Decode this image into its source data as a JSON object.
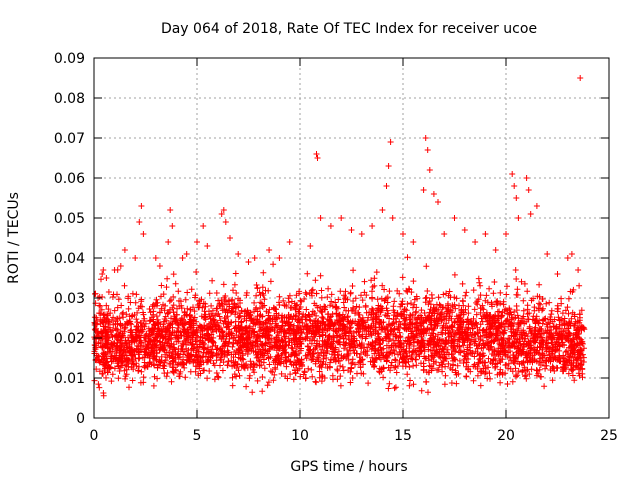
{
  "chart_data": {
    "type": "scatter",
    "title": "Day 064 of 2018, Rate Of TEC Index for receiver ucoe",
    "xlabel": "GPS time / hours",
    "ylabel": "ROTI / TECUs",
    "xlim": [
      0,
      25
    ],
    "ylim": [
      0,
      0.09
    ],
    "xticks": [
      0,
      5,
      10,
      15,
      20,
      25
    ],
    "xtick_labels": [
      "0",
      "5",
      "10",
      "15",
      "20",
      "25"
    ],
    "yticks": [
      0,
      0.01,
      0.02,
      0.03,
      0.04,
      0.05,
      0.06,
      0.07,
      0.08,
      0.09
    ],
    "ytick_labels": [
      "0",
      "0.01",
      "0.02",
      "0.03",
      "0.04",
      "0.05",
      "0.06",
      "0.07",
      "0.08",
      "0.09"
    ],
    "grid": true,
    "marker": "+",
    "series": [
      {
        "name": "ROTI",
        "color": "#ff0000",
        "points": [
          [
            0.05,
            0.031
          ],
          [
            0.2,
            0.03
          ],
          [
            0.3,
            0.028
          ],
          [
            0.4,
            0.036
          ],
          [
            0.45,
            0.037
          ],
          [
            0.6,
            0.035
          ],
          [
            1.0,
            0.037
          ],
          [
            1.3,
            0.038
          ],
          [
            1.5,
            0.042
          ],
          [
            2.0,
            0.04
          ],
          [
            2.2,
            0.049
          ],
          [
            2.3,
            0.053
          ],
          [
            2.4,
            0.046
          ],
          [
            3.0,
            0.04
          ],
          [
            3.2,
            0.038
          ],
          [
            3.6,
            0.044
          ],
          [
            3.7,
            0.052
          ],
          [
            3.8,
            0.048
          ],
          [
            4.3,
            0.04
          ],
          [
            4.5,
            0.041
          ],
          [
            5.0,
            0.044
          ],
          [
            5.3,
            0.048
          ],
          [
            5.5,
            0.043
          ],
          [
            6.2,
            0.051
          ],
          [
            6.3,
            0.052
          ],
          [
            6.4,
            0.049
          ],
          [
            6.6,
            0.045
          ],
          [
            7.0,
            0.041
          ],
          [
            7.5,
            0.039
          ],
          [
            7.8,
            0.04
          ],
          [
            8.5,
            0.042
          ],
          [
            9.0,
            0.04
          ],
          [
            9.5,
            0.044
          ],
          [
            10.5,
            0.043
          ],
          [
            10.8,
            0.066
          ],
          [
            10.85,
            0.065
          ],
          [
            11.0,
            0.05
          ],
          [
            11.5,
            0.048
          ],
          [
            12.0,
            0.05
          ],
          [
            12.5,
            0.047
          ],
          [
            13.0,
            0.046
          ],
          [
            13.5,
            0.048
          ],
          [
            14.0,
            0.052
          ],
          [
            14.2,
            0.058
          ],
          [
            14.3,
            0.063
          ],
          [
            14.4,
            0.069
          ],
          [
            14.5,
            0.05
          ],
          [
            15.0,
            0.046
          ],
          [
            15.5,
            0.044
          ],
          [
            16.0,
            0.057
          ],
          [
            16.1,
            0.07
          ],
          [
            16.2,
            0.067
          ],
          [
            16.3,
            0.062
          ],
          [
            16.5,
            0.056
          ],
          [
            16.7,
            0.054
          ],
          [
            17.0,
            0.046
          ],
          [
            17.5,
            0.05
          ],
          [
            18.0,
            0.047
          ],
          [
            18.5,
            0.044
          ],
          [
            19.0,
            0.046
          ],
          [
            19.5,
            0.042
          ],
          [
            20.0,
            0.046
          ],
          [
            20.3,
            0.061
          ],
          [
            20.4,
            0.058
          ],
          [
            20.5,
            0.055
          ],
          [
            20.6,
            0.05
          ],
          [
            21.0,
            0.06
          ],
          [
            21.1,
            0.057
          ],
          [
            21.2,
            0.051
          ],
          [
            21.5,
            0.053
          ],
          [
            22.0,
            0.041
          ],
          [
            22.5,
            0.036
          ],
          [
            23.0,
            0.04
          ],
          [
            23.2,
            0.041
          ],
          [
            23.5,
            0.037
          ],
          [
            23.6,
            0.085
          ]
        ],
        "bulk_envelope": {
          "x_range": [
            0,
            23.8
          ],
          "lower_ranges": [
            [
              0,
              0.004
            ],
            [
              5,
              0.006
            ],
            [
              15,
              0.005
            ],
            [
              23,
              0.006
            ]
          ],
          "upper_ranges": [
            [
              0,
              0.032
            ],
            [
              5,
              0.034
            ],
            [
              10,
              0.035
            ],
            [
              15,
              0.036
            ],
            [
              20,
              0.034
            ],
            [
              23.8,
              0.03
            ]
          ]
        }
      }
    ]
  }
}
